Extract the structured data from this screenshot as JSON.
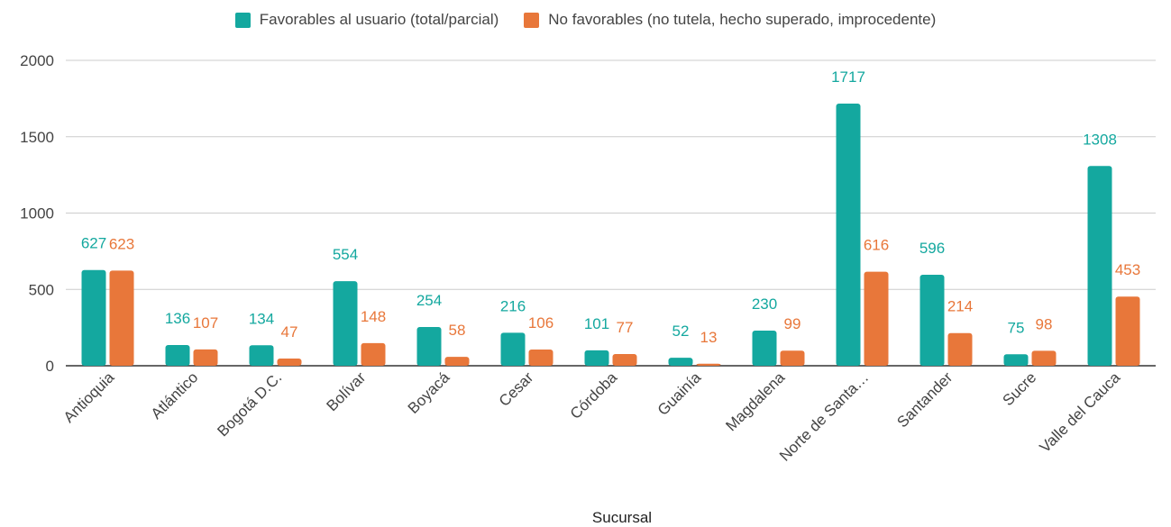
{
  "chart_data": {
    "type": "bar",
    "xlabel": "Sucursal",
    "ylabel": "",
    "ylim": [
      0,
      2000
    ],
    "yticks": [
      0,
      500,
      1000,
      1500,
      2000
    ],
    "grid": true,
    "legend_position": "top",
    "categories": [
      "Antioquia",
      "Atlántico",
      "Bogotá D.C.",
      "Bolívar",
      "Boyacá",
      "Cesar",
      "Córdoba",
      "Guainía",
      "Magdalena",
      "Norte de Santa…",
      "Santander",
      "Sucre",
      "Valle del Cauca"
    ],
    "series": [
      {
        "name": "Favorables al usuario (total/parcial)",
        "color": "#14a89f",
        "values": [
          627,
          136,
          134,
          554,
          254,
          216,
          101,
          52,
          230,
          1717,
          596,
          75,
          1308
        ]
      },
      {
        "name": "No favorables (no tutela, hecho superado, improcedente)",
        "color": "#e8773a",
        "values": [
          623,
          107,
          47,
          148,
          58,
          106,
          77,
          13,
          99,
          616,
          214,
          98,
          453
        ]
      }
    ]
  }
}
